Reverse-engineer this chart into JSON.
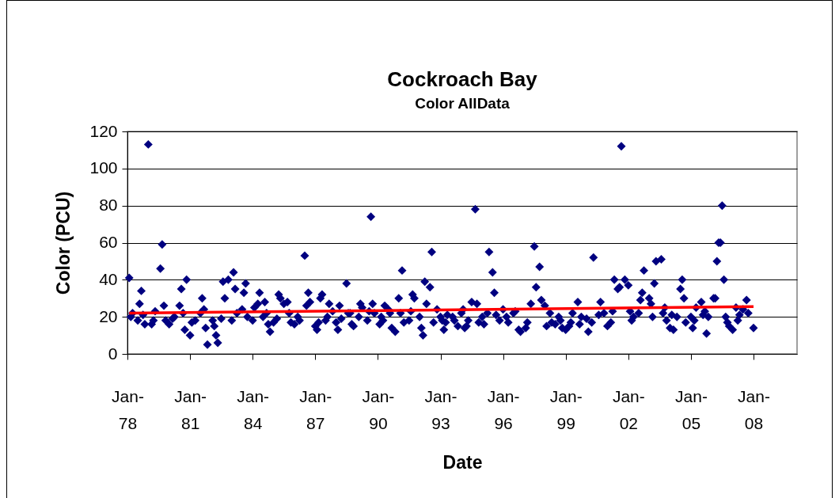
{
  "chart_data": {
    "type": "scatter",
    "title": "Cockroach Bay",
    "subtitle": "Color AllData",
    "xlabel": "Date",
    "ylabel": "Color (PCU)",
    "xlim": [
      "1978-01-01",
      "2010-02-01"
    ],
    "ylim": [
      0,
      120
    ],
    "xticks": [
      {
        "value": "1978-01-01",
        "label": "Jan-78"
      },
      {
        "value": "1981-01-01",
        "label": "Jan-81"
      },
      {
        "value": "1984-01-01",
        "label": "Jan-84"
      },
      {
        "value": "1987-01-01",
        "label": "Jan-87"
      },
      {
        "value": "1990-01-01",
        "label": "Jan-90"
      },
      {
        "value": "1993-01-01",
        "label": "Jan-93"
      },
      {
        "value": "1996-01-01",
        "label": "Jan-96"
      },
      {
        "value": "1999-01-01",
        "label": "Jan-99"
      },
      {
        "value": "2002-01-01",
        "label": "Jan-02"
      },
      {
        "value": "2005-01-01",
        "label": "Jan-05"
      },
      {
        "value": "2008-01-01",
        "label": "Jan-08"
      }
    ],
    "yticks": [
      0,
      20,
      40,
      60,
      80,
      100,
      120
    ],
    "grid": "y",
    "series": [
      {
        "color": "#000080",
        "marker": "diamond",
        "x": [
          "1978-02",
          "1978-03",
          "1978-04",
          "1978-07",
          "1978-08",
          "1978-09",
          "1978-10",
          "1978-11",
          "1979-01",
          "1979-03",
          "1979-04",
          "1979-05",
          "1979-08",
          "1979-09",
          "1979-10",
          "1979-11",
          "1980-01",
          "1980-03",
          "1980-04",
          "1980-07",
          "1980-08",
          "1980-09",
          "1980-10",
          "1980-11",
          "1981-01",
          "1981-02",
          "1981-04",
          "1981-07",
          "1981-08",
          "1981-09",
          "1981-10",
          "1981-11",
          "1982-02",
          "1982-03",
          "1982-04",
          "1982-05",
          "1982-07",
          "1982-08",
          "1982-09",
          "1982-11",
          "1983-01",
          "1983-02",
          "1983-03",
          "1983-04",
          "1983-07",
          "1983-08",
          "1983-09",
          "1983-10",
          "1984-01",
          "1984-02",
          "1984-04",
          "1984-05",
          "1984-07",
          "1984-08",
          "1984-09",
          "1984-10",
          "1984-11",
          "1985-01",
          "1985-03",
          "1985-04",
          "1985-05",
          "1985-07",
          "1985-09",
          "1985-10",
          "1985-11",
          "1986-01",
          "1986-03",
          "1986-04",
          "1986-07",
          "1986-08",
          "1986-09",
          "1986-10",
          "1987-01",
          "1987-02",
          "1987-03",
          "1987-04",
          "1987-05",
          "1987-07",
          "1987-08",
          "1987-09",
          "1987-11",
          "1988-01",
          "1988-02",
          "1988-03",
          "1988-04",
          "1988-07",
          "1988-08",
          "1988-09",
          "1988-10",
          "1988-11",
          "1989-02",
          "1989-03",
          "1989-04",
          "1989-07",
          "1989-08",
          "1989-09",
          "1989-10",
          "1989-11",
          "1990-02",
          "1990-03",
          "1990-04",
          "1990-05",
          "1990-07",
          "1990-08",
          "1990-09",
          "1990-11",
          "1991-01",
          "1991-02",
          "1991-03",
          "1991-04",
          "1991-07",
          "1991-08",
          "1991-09",
          "1991-10",
          "1992-01",
          "1992-02",
          "1992-03",
          "1992-04",
          "1992-05",
          "1992-07",
          "1992-08",
          "1992-09",
          "1992-11",
          "1993-01",
          "1993-02",
          "1993-03",
          "1993-04",
          "1993-05",
          "1993-08",
          "1993-09",
          "1993-11",
          "1994-01",
          "1994-02",
          "1994-03",
          "1994-04",
          "1994-05",
          "1994-07",
          "1994-09",
          "1994-10",
          "1994-11",
          "1995-01",
          "1995-02",
          "1995-04",
          "1995-05",
          "1995-07",
          "1995-08",
          "1995-09",
          "1995-11",
          "1996-01",
          "1996-03",
          "1996-04",
          "1996-07",
          "1996-08",
          "1996-10",
          "1996-11",
          "1997-02",
          "1997-03",
          "1997-05",
          "1997-07",
          "1997-08",
          "1997-10",
          "1997-11",
          "1998-01",
          "1998-02",
          "1998-04",
          "1998-05",
          "1998-07",
          "1998-09",
          "1998-10",
          "1998-11",
          "1999-01",
          "1999-03",
          "1999-04",
          "1999-05",
          "1999-08",
          "1999-09",
          "1999-10",
          "2000-01",
          "2000-02",
          "2000-04",
          "2000-05",
          "2000-08",
          "2000-09",
          "2000-11",
          "2001-01",
          "2001-03",
          "2001-04",
          "2001-05",
          "2001-07",
          "2001-08",
          "2001-09",
          "2001-11",
          "2002-01",
          "2002-02",
          "2002-03",
          "2002-04",
          "2002-07",
          "2002-08",
          "2002-09",
          "2002-10",
          "2003-01",
          "2003-02",
          "2003-03",
          "2003-04",
          "2003-05",
          "2003-08",
          "2003-09",
          "2003-10",
          "2003-11",
          "2004-01",
          "2004-02",
          "2004-03",
          "2004-05",
          "2004-07",
          "2004-08",
          "2004-09",
          "2004-10",
          "2005-01",
          "2005-02",
          "2005-03",
          "2005-04",
          "2005-07",
          "2005-08",
          "2005-09",
          "2005-10",
          "2005-11",
          "2006-02",
          "2006-03",
          "2006-04",
          "2006-05",
          "2006-06",
          "2006-07",
          "2006-08",
          "2006-09",
          "2006-10",
          "2006-11",
          "2007-01",
          "2007-03",
          "2007-04",
          "2007-05",
          "2007-07",
          "2007-09",
          "2007-10",
          "2008-01"
        ],
        "values": [
          41,
          20,
          22,
          18,
          27,
          34,
          21,
          16,
          113,
          16,
          18,
          23,
          46,
          59,
          26,
          18,
          16,
          19,
          20,
          26,
          35,
          22,
          13,
          40,
          10,
          17,
          18,
          22,
          30,
          24,
          14,
          5,
          18,
          15,
          10,
          6,
          19,
          39,
          30,
          40,
          18,
          44,
          35,
          22,
          24,
          33,
          38,
          20,
          18,
          25,
          27,
          33,
          20,
          28,
          22,
          16,
          12,
          17,
          19,
          32,
          30,
          27,
          28,
          22,
          17,
          16,
          20,
          18,
          53,
          26,
          33,
          28,
          15,
          13,
          17,
          30,
          32,
          18,
          20,
          27,
          23,
          17,
          13,
          26,
          19,
          38,
          22,
          22,
          16,
          15,
          20,
          27,
          25,
          18,
          23,
          74,
          27,
          22,
          16,
          20,
          18,
          26,
          24,
          22,
          14,
          12,
          30,
          22,
          45,
          17,
          18,
          23,
          32,
          30,
          20,
          14,
          10,
          39,
          27,
          36,
          55,
          17,
          24,
          20,
          18,
          13,
          17,
          21,
          20,
          18,
          15,
          22,
          24,
          14,
          15,
          18,
          28,
          78,
          27,
          17,
          20,
          16,
          22,
          55,
          44,
          33,
          21,
          18,
          24,
          20,
          17,
          22,
          23,
          13,
          12,
          14,
          17,
          27,
          58,
          36,
          47,
          29,
          26,
          15,
          22,
          17,
          16,
          20,
          18,
          14,
          13,
          15,
          17,
          22,
          28,
          16,
          20,
          19,
          12,
          17,
          52,
          21,
          28,
          22,
          15,
          17,
          23,
          40,
          35,
          36,
          112,
          40,
          37,
          23,
          18,
          20,
          22,
          29,
          33,
          45,
          30,
          27,
          20,
          38,
          50,
          51,
          22,
          25,
          18,
          14,
          21,
          13,
          20,
          35,
          40,
          30,
          17,
          20,
          14,
          18,
          25,
          28,
          21,
          23,
          11,
          20,
          30,
          30,
          50,
          60,
          60,
          80,
          40,
          20,
          17,
          15,
          13,
          25,
          18,
          21,
          24,
          29,
          22,
          14
        ]
      },
      {
        "type": "line",
        "color": "#ff0000",
        "x": [
          "1978-02",
          "2008-01"
        ],
        "values": [
          22,
          25.5
        ]
      }
    ]
  }
}
